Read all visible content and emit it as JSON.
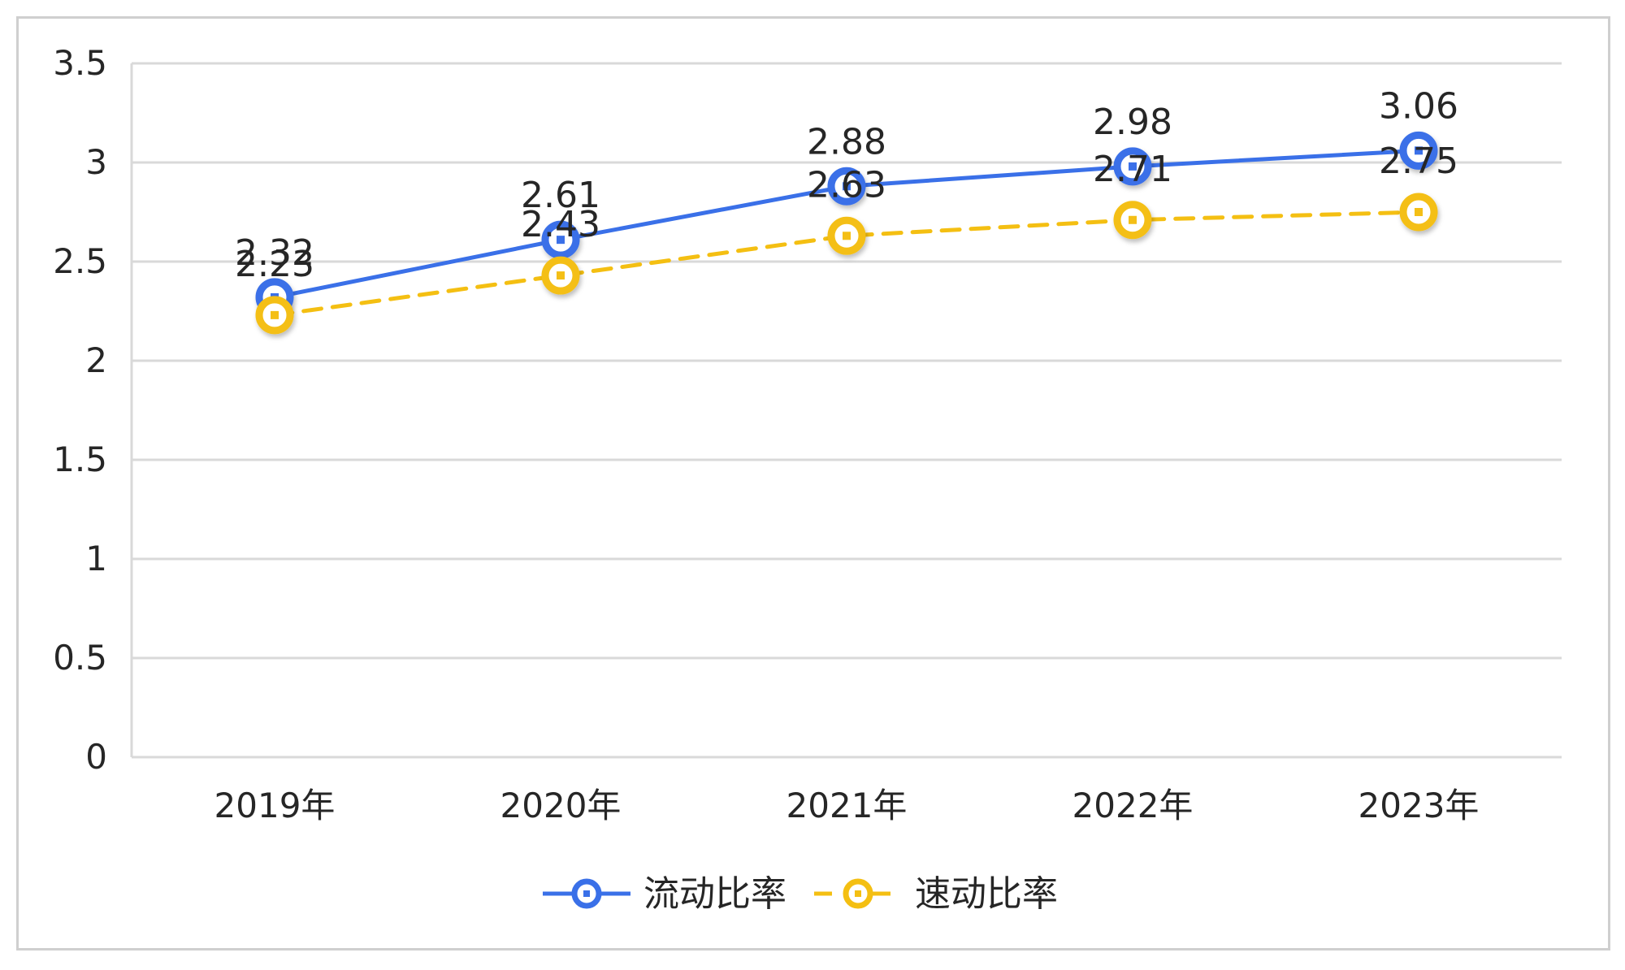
{
  "chart_data": {
    "type": "line",
    "categories": [
      "2019年",
      "2020年",
      "2021年",
      "2022年",
      "2023年"
    ],
    "series": [
      {
        "name": "流动比率",
        "values": [
          2.32,
          2.61,
          2.88,
          2.98,
          3.06
        ],
        "color": "#3a70e8",
        "line_style": "solid"
      },
      {
        "name": "速动比率",
        "values": [
          2.23,
          2.43,
          2.63,
          2.71,
          2.75
        ],
        "color": "#f4bf12",
        "line_style": "dashed"
      }
    ],
    "yticks": [
      "0",
      "0.5",
      "1",
      "1.5",
      "2",
      "2.5",
      "3",
      "3.5"
    ],
    "ylim": [
      0,
      3.5
    ],
    "grid": true,
    "legend_position": "bottom"
  }
}
